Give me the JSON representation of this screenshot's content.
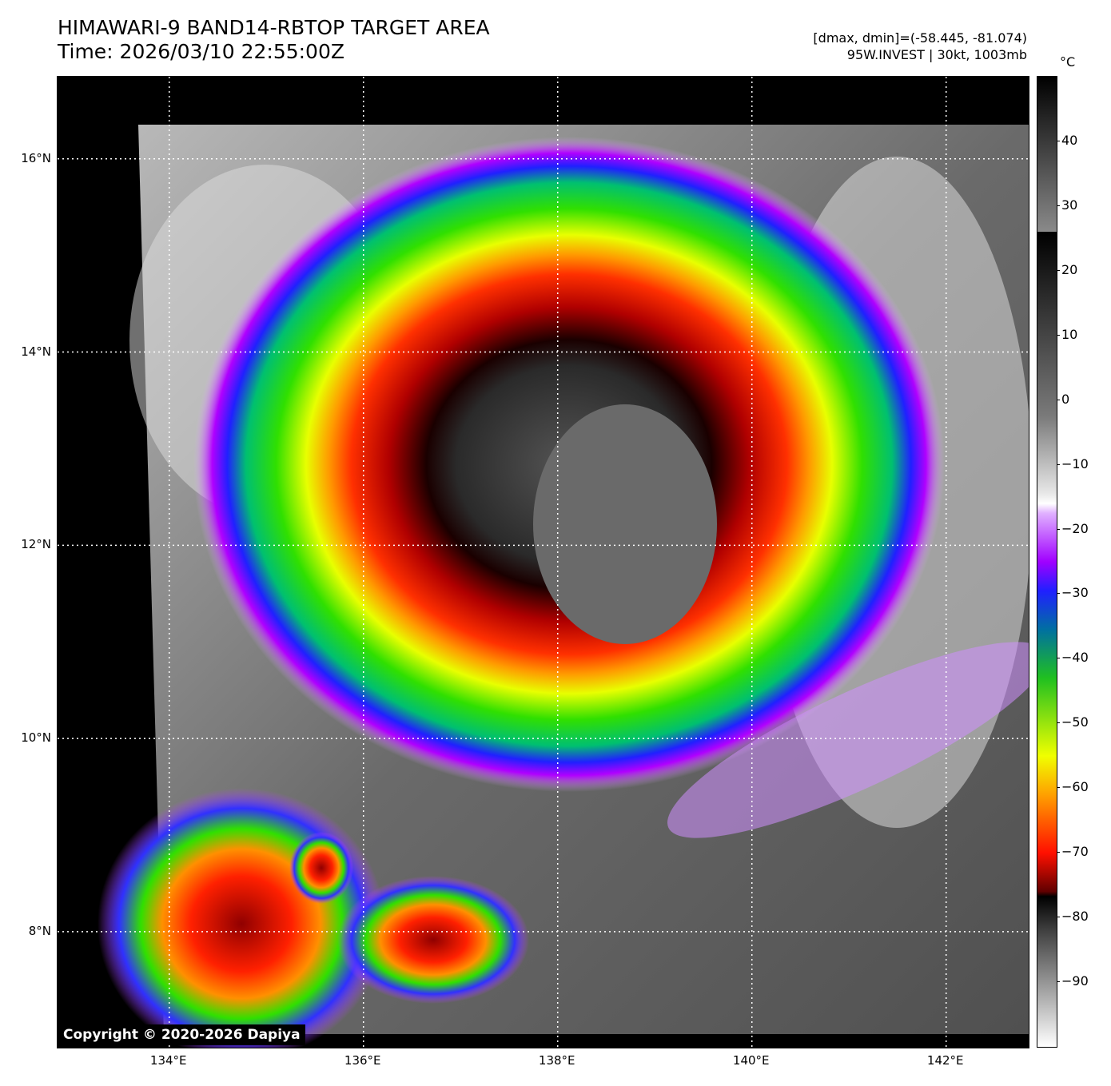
{
  "header": {
    "title": "HIMAWARI-9 BAND14-RBTOP TARGET AREA",
    "time": "Time: 2026/03/10 22:55:00Z",
    "range": "[dmax, dmin]=(-58.445, -81.074)",
    "storm": "95W.INVEST | 30kt, 1003mb"
  },
  "map": {
    "lat_labels": [
      "16°N",
      "14°N",
      "12°N",
      "10°N",
      "8°N"
    ],
    "lat_values": [
      16,
      14,
      12,
      10,
      8
    ],
    "lon_labels": [
      "134°E",
      "136°E",
      "138°E",
      "140°E",
      "142°E"
    ],
    "lon_values": [
      134,
      136,
      138,
      140,
      142
    ],
    "lat_range": [
      6.8,
      16.85
    ],
    "lon_range": [
      132.85,
      142.85
    ],
    "copyright": "Copyright © 2020-2026 Dapiya"
  },
  "colorbar": {
    "unit": "°C",
    "ticks": [
      "40",
      "30",
      "20",
      "10",
      "0",
      "−10",
      "−20",
      "−30",
      "−40",
      "−50",
      "−60",
      "−70",
      "−80",
      "−90"
    ],
    "tick_values": [
      40,
      30,
      20,
      10,
      0,
      -10,
      -20,
      -30,
      -40,
      -50,
      -60,
      -70,
      -80,
      -90
    ],
    "range": [
      -100,
      50
    ]
  },
  "colors": {
    "cold_core": "#1a1a1a",
    "red": "#c80000",
    "orange": "#ff7a00",
    "yellow": "#e6ff00",
    "green": "#2be000",
    "blue": "#2020ff",
    "purple": "#b000ff",
    "cloud_gray": "#9a9a9a"
  }
}
